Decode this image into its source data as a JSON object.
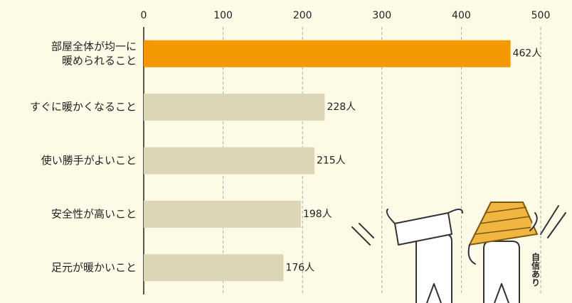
{
  "chart_data": {
    "type": "bar",
    "orientation": "horizontal",
    "categories": [
      "部屋全体が均一に\n暖められること",
      "すぐに暖かくなること",
      "使い勝手がよいこと",
      "安全性が高いこと",
      "足元が暖かいこと"
    ],
    "values": [
      462,
      228,
      215,
      198,
      176
    ],
    "value_labels": [
      "462人",
      "228人",
      "215人",
      "198人",
      "176人"
    ],
    "colors": [
      "#f39800",
      "#ddd6b6",
      "#ddd6b6",
      "#ddd6b6",
      "#ddd6b6"
    ],
    "xlim": [
      0,
      500
    ],
    "xticks": [
      0,
      100,
      200,
      300,
      400,
      500
    ],
    "grid": true,
    "annotation": "自信あり"
  }
}
